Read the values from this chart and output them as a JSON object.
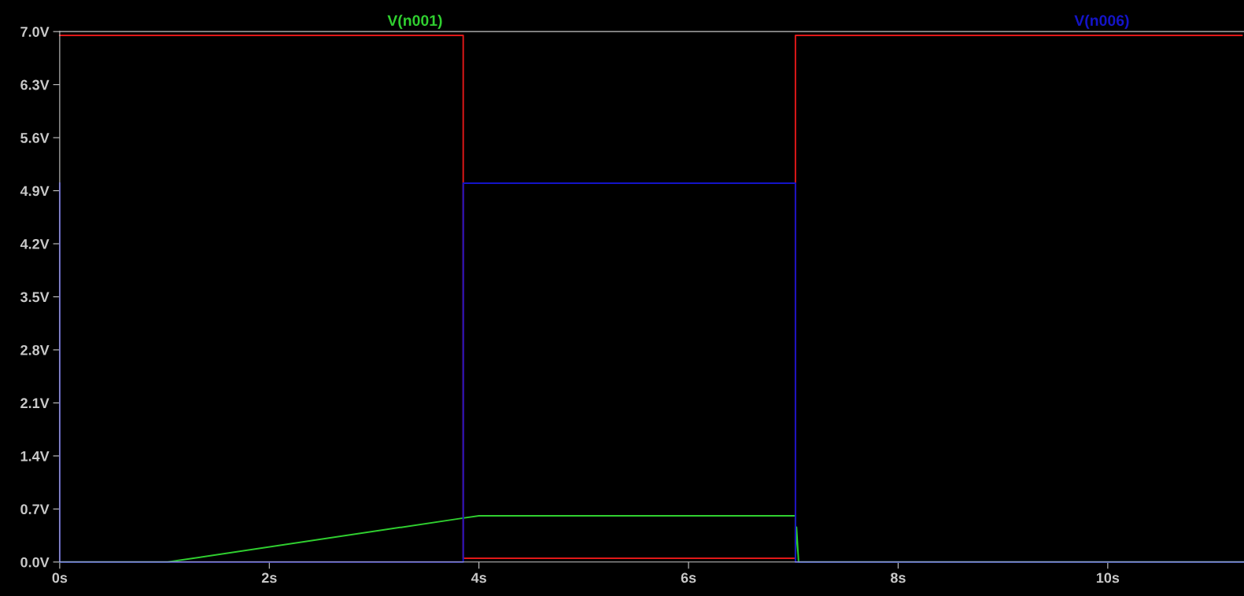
{
  "chart_data": {
    "type": "line",
    "series": [
      {
        "color": "#e01818",
        "x": [
          0,
          3.85,
          3.85,
          7.02,
          7.02,
          11.28
        ],
        "values": [
          6.95,
          6.95,
          0.05,
          0.05,
          6.95,
          6.95
        ]
      },
      {
        "name": "V(n001)",
        "color": "#30d030",
        "x": [
          0,
          1.03,
          3.85,
          4.0,
          7.02,
          7.02,
          7.03,
          7.05,
          11.3
        ],
        "values": [
          0,
          0,
          0.58,
          0.61,
          0.61,
          0.05,
          0.46,
          0.0,
          0.0
        ]
      },
      {
        "name": "V(n006)",
        "color": "#1414c8",
        "x": [
          0,
          0,
          3.85,
          3.85,
          7.02,
          7.02,
          11.3
        ],
        "values": [
          5.0,
          0,
          0,
          5.0,
          5.0,
          0,
          0
        ]
      }
    ],
    "xlim": [
      0,
      11.3
    ],
    "ylim": [
      0,
      7.0
    ],
    "xticks": [
      {
        "value": 0,
        "label": "0s"
      },
      {
        "value": 2,
        "label": "2s"
      },
      {
        "value": 4,
        "label": "4s"
      },
      {
        "value": 6,
        "label": "6s"
      },
      {
        "value": 8,
        "label": "8s"
      },
      {
        "value": 10,
        "label": "10s"
      }
    ],
    "yticks": [
      {
        "value": 0,
        "label": "0.0V"
      },
      {
        "value": 0.7,
        "label": "0.7V"
      },
      {
        "value": 1.4,
        "label": "1.4V"
      },
      {
        "value": 2.1,
        "label": "2.1V"
      },
      {
        "value": 2.8,
        "label": "2.8V"
      },
      {
        "value": 3.5,
        "label": "3.5V"
      },
      {
        "value": 4.2,
        "label": "4.2V"
      },
      {
        "value": 4.9,
        "label": "4.9V"
      },
      {
        "value": 5.6,
        "label": "5.6V"
      },
      {
        "value": 6.3,
        "label": "6.3V"
      },
      {
        "value": 7.0,
        "label": "7.0V"
      }
    ],
    "legend": "top",
    "grid": false,
    "marker": "none",
    "line_style": "solid"
  }
}
